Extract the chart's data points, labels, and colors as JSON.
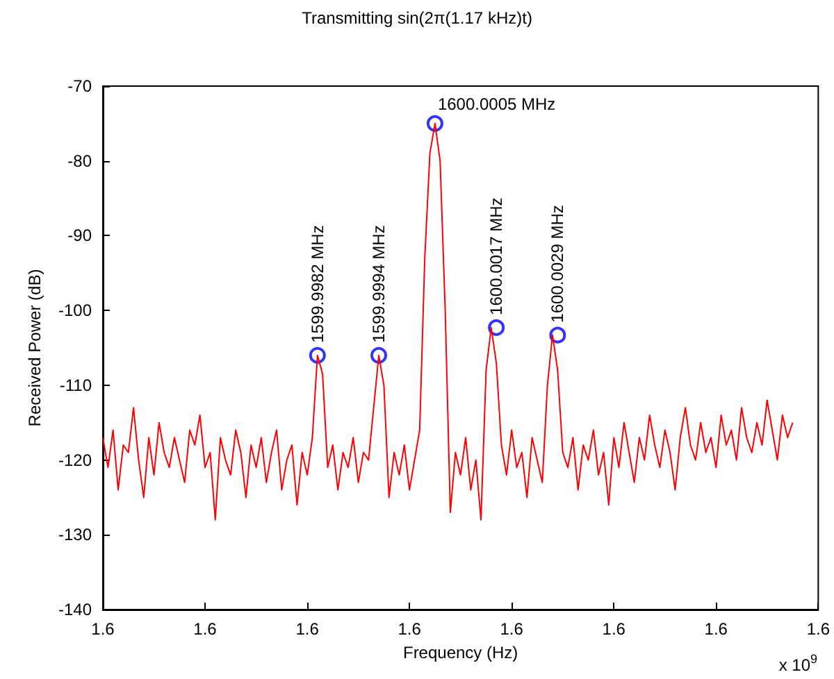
{
  "chart_data": {
    "type": "line",
    "title": "Transmitting sin(2π(1.17 kHz)t)",
    "xlabel": "Frequency (Hz)",
    "ylabel": "Received Power (dB)",
    "xlim": [
      1.599994,
      1.600008
    ],
    "xticks": [
      {
        "value": 1.599994,
        "label": "1.6"
      },
      {
        "value": 1.599996,
        "label": "1.6"
      },
      {
        "value": 1.599998,
        "label": "1.6"
      },
      {
        "value": 1.6,
        "label": "1.6"
      },
      {
        "value": 1.600002,
        "label": "1.6"
      },
      {
        "value": 1.600004,
        "label": "1.6"
      },
      {
        "value": 1.600006,
        "label": "1.6"
      },
      {
        "value": 1.600008,
        "label": "1.6"
      }
    ],
    "ylim": [
      -140,
      -70
    ],
    "yticks": [
      -140,
      -130,
      -120,
      -110,
      -100,
      -90,
      -80,
      -70
    ],
    "grid": false,
    "series": [
      {
        "color": "#ff0000",
        "marker": "none",
        "line_style": "solid",
        "x": [
          1.599994,
          1.5999941,
          1.5999942,
          1.5999943,
          1.5999944,
          1.5999945,
          1.5999946,
          1.5999947,
          1.5999948,
          1.5999949,
          1.599995,
          1.5999951,
          1.5999952,
          1.5999953,
          1.5999954,
          1.5999955,
          1.5999956,
          1.5999957,
          1.5999958,
          1.5999959,
          1.599996,
          1.5999961,
          1.5999962,
          1.5999963,
          1.5999964,
          1.5999965,
          1.5999966,
          1.5999967,
          1.5999968,
          1.5999969,
          1.599997,
          1.5999971,
          1.5999972,
          1.5999973,
          1.5999974,
          1.5999975,
          1.5999976,
          1.5999977,
          1.5999978,
          1.5999979,
          1.599998,
          1.5999981,
          1.5999982,
          1.5999983,
          1.5999984,
          1.5999985,
          1.5999986,
          1.5999987,
          1.5999988,
          1.5999989,
          1.599999,
          1.5999991,
          1.5999992,
          1.5999993,
          1.5999994,
          1.5999995,
          1.5999996,
          1.5999997,
          1.5999998,
          1.5999999,
          1.6,
          1.6000001,
          1.6000002,
          1.6000003,
          1.6000004,
          1.6000005,
          1.6000006,
          1.6000007,
          1.6000008,
          1.6000009,
          1.600001,
          1.6000011,
          1.6000012,
          1.6000013,
          1.6000014,
          1.6000015,
          1.6000016,
          1.6000017,
          1.6000018,
          1.6000019,
          1.600002,
          1.6000021,
          1.6000022,
          1.6000023,
          1.6000024,
          1.6000025,
          1.6000026,
          1.6000027,
          1.6000028,
          1.6000029,
          1.600003,
          1.6000031,
          1.6000032,
          1.6000033,
          1.6000034,
          1.6000035,
          1.6000036,
          1.6000037,
          1.6000038,
          1.6000039,
          1.600004,
          1.6000041,
          1.6000042,
          1.6000043,
          1.6000044,
          1.6000045,
          1.6000046,
          1.6000047,
          1.6000048,
          1.6000049,
          1.600005,
          1.6000051,
          1.6000052,
          1.6000053,
          1.6000054,
          1.6000055,
          1.6000056,
          1.6000057,
          1.6000058,
          1.6000059,
          1.600006,
          1.6000061,
          1.6000062,
          1.6000063,
          1.6000064,
          1.6000065,
          1.6000066,
          1.6000067,
          1.6000068,
          1.6000069,
          1.600007,
          1.6000071,
          1.6000072,
          1.6000073,
          1.6000074,
          1.6000075
        ],
        "values": [
          -117,
          -121,
          -116,
          -124,
          -118,
          -119,
          -113,
          -120,
          -125,
          -117,
          -122,
          -115,
          -119,
          -121,
          -117,
          -120,
          -123,
          -116,
          -118,
          -114,
          -121,
          -119,
          -128,
          -117,
          -120,
          -122,
          -116,
          -119,
          -125,
          -118,
          -121,
          -117,
          -123,
          -119,
          -116,
          -124,
          -120,
          -118,
          -126,
          -119,
          -122,
          -117,
          -106,
          -108.5,
          -121,
          -118,
          -124,
          -119,
          -121,
          -117,
          -123,
          -119,
          -120,
          -113,
          -106,
          -110,
          -125,
          -119,
          -122,
          -118,
          -124,
          -120,
          -116,
          -93,
          -79,
          -75,
          -80,
          -100,
          -127,
          -119,
          -122,
          -117,
          -124,
          -120,
          -128,
          -108,
          -102.3,
          -107,
          -118,
          -122,
          -116,
          -121,
          -119,
          -125,
          -117,
          -120,
          -123,
          -110,
          -103.3,
          -108,
          -119,
          -121,
          -117,
          -124,
          -118,
          -120,
          -116,
          -122,
          -119,
          -126,
          -117,
          -121,
          -115,
          -119,
          -123,
          -117,
          -120,
          -114,
          -118,
          -121,
          -116,
          -119,
          -124,
          -117,
          -113,
          -118,
          -120,
          -115,
          -119,
          -117,
          -121,
          -114,
          -118,
          -116,
          -120,
          -113,
          -117,
          -119,
          -115,
          -118,
          -112,
          -116,
          -120,
          -114,
          -117,
          -115
        ]
      },
      {
        "type": "scatter",
        "color": "#0000ff",
        "marker": "circle",
        "x": [
          1.5999982,
          1.5999994,
          1.6000005,
          1.6000017,
          1.6000029
        ],
        "values": [
          -106,
          -106,
          -75,
          -102.3,
          -103.3
        ]
      }
    ],
    "annotations": [
      {
        "text": "1599.9982 MHz",
        "x": 1.5999982,
        "y": -106
      },
      {
        "text": "1599.9994 MHz",
        "x": 1.5999994,
        "y": -106
      },
      {
        "text": "1600.0005 MHz",
        "x": 1.6000005,
        "y": -75
      },
      {
        "text": "1600.0017 MHz",
        "x": 1.6000017,
        "y": -102.3
      },
      {
        "text": "1600.0029 MHz",
        "x": 1.6000029,
        "y": -103.3
      },
      "x 10$^{9}$"
    ]
  }
}
